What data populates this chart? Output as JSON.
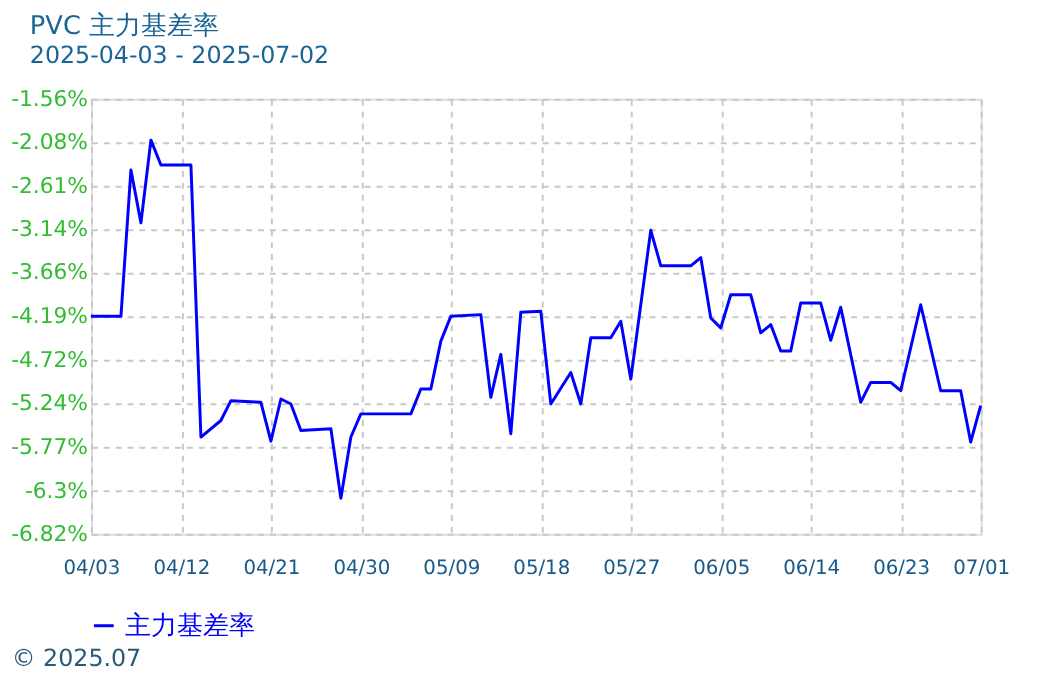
{
  "chart_data": {
    "type": "line",
    "title": "PVC 主力基差率",
    "subtitle": "2025-04-03 - 2025-07-02",
    "x": [
      "2025-04-03",
      "2025-04-06",
      "2025-04-07",
      "2025-04-08",
      "2025-04-09",
      "2025-04-10",
      "2025-04-13",
      "2025-04-14",
      "2025-04-16",
      "2025-04-17",
      "2025-04-20",
      "2025-04-21",
      "2025-04-22",
      "2025-04-23",
      "2025-04-24",
      "2025-04-27",
      "2025-04-28",
      "2025-04-29",
      "2025-04-30",
      "2025-05-05",
      "2025-05-06",
      "2025-05-07",
      "2025-05-08",
      "2025-05-09",
      "2025-05-12",
      "2025-05-13",
      "2025-05-14",
      "2025-05-15",
      "2025-05-16",
      "2025-05-18",
      "2025-05-19",
      "2025-05-21",
      "2025-05-22",
      "2025-05-23",
      "2025-05-25",
      "2025-05-26",
      "2025-05-27",
      "2025-05-29",
      "2025-05-30",
      "2025-06-02",
      "2025-06-03",
      "2025-06-04",
      "2025-06-05",
      "2025-06-06",
      "2025-06-08",
      "2025-06-09",
      "2025-06-10",
      "2025-06-11",
      "2025-06-12",
      "2025-06-13",
      "2025-06-15",
      "2025-06-16",
      "2025-06-17",
      "2025-06-19",
      "2025-06-20",
      "2025-06-22",
      "2025-06-23",
      "2025-06-25",
      "2025-06-27",
      "2025-06-29",
      "2025-06-30",
      "2025-07-01"
    ],
    "series": [
      {
        "name": "主力基差率",
        "color": "#0000ff",
        "values": [
          -4.19,
          -4.19,
          -2.42,
          -3.06,
          -2.06,
          -2.36,
          -2.36,
          -5.65,
          -5.45,
          -5.21,
          -5.23,
          -5.7,
          -5.19,
          -5.25,
          -5.57,
          -5.55,
          -6.39,
          -5.65,
          -5.37,
          -5.37,
          -5.07,
          -5.07,
          -4.49,
          -4.19,
          -4.17,
          -5.17,
          -4.65,
          -5.61,
          -4.14,
          -4.13,
          -5.25,
          -4.87,
          -5.25,
          -4.45,
          -4.45,
          -4.25,
          -4.95,
          -3.15,
          -3.58,
          -3.58,
          -3.48,
          -4.21,
          -4.33,
          -3.93,
          -3.93,
          -4.39,
          -4.29,
          -4.61,
          -4.61,
          -4.03,
          -4.03,
          -4.48,
          -4.08,
          -5.23,
          -4.99,
          -4.99,
          -5.09,
          -4.05,
          -5.09,
          -5.09,
          -5.71,
          -5.27
        ]
      }
    ],
    "xlim": [
      "2025-04-03",
      "2025-07-01"
    ],
    "xticks": [
      {
        "value": "2025-04-03",
        "label": "04/03"
      },
      {
        "value": "2025-04-12",
        "label": "04/12"
      },
      {
        "value": "2025-04-21",
        "label": "04/21"
      },
      {
        "value": "2025-04-30",
        "label": "04/30"
      },
      {
        "value": "2025-05-09",
        "label": "05/09"
      },
      {
        "value": "2025-05-18",
        "label": "05/18"
      },
      {
        "value": "2025-05-27",
        "label": "05/27"
      },
      {
        "value": "2025-06-05",
        "label": "06/05"
      },
      {
        "value": "2025-06-14",
        "label": "06/14"
      },
      {
        "value": "2025-06-23",
        "label": "06/23"
      },
      {
        "value": "2025-07-01",
        "label": "07/01"
      }
    ],
    "ylim": [
      -6.82,
      -1.56
    ],
    "yticks": [
      {
        "value": -6.82,
        "label": "-6.82%"
      },
      {
        "value": -6.3,
        "label": "-6.3%"
      },
      {
        "value": -5.77,
        "label": "-5.77%"
      },
      {
        "value": -5.24,
        "label": "-5.24%"
      },
      {
        "value": -4.72,
        "label": "-4.72%"
      },
      {
        "value": -4.19,
        "label": "-4.19%"
      },
      {
        "value": -3.66,
        "label": "-3.66%"
      },
      {
        "value": -3.14,
        "label": "-3.14%"
      },
      {
        "value": -2.61,
        "label": "-2.61%"
      },
      {
        "value": -2.08,
        "label": "-2.08%"
      },
      {
        "value": -1.56,
        "label": "-1.56%"
      }
    ],
    "grid": true,
    "legend": "bottom",
    "marker": "none",
    "line_style": "solid",
    "annotations": [
      "© 2025.07"
    ]
  }
}
